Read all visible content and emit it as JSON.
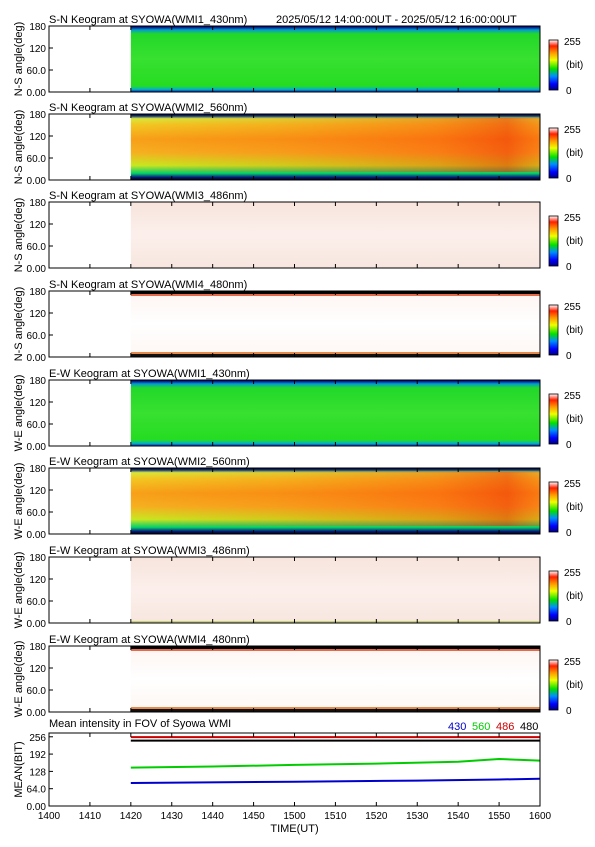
{
  "header": {
    "time_range": "2025/05/12 14:00:00UT - 2025/05/12 16:00:00UT"
  },
  "colors": {
    "channel_430": "#0000cc",
    "channel_560": "#00cc00",
    "channel_486": "#cc0000",
    "channel_480": "#000000"
  },
  "colorbar": {
    "max_label": "255",
    "unit_label": "(bit)",
    "min_label": "0"
  },
  "chart_data": [
    {
      "type": "heatmap",
      "title": "S-N Keogram at SYOWA(WMI1_430nm)",
      "ylabel": "N-S angle(deg)",
      "yticks": [
        "0.00",
        "60.0",
        "120",
        "180"
      ],
      "ylim": [
        0,
        180
      ],
      "data_start_ut": "1420",
      "appearance": "green"
    },
    {
      "type": "heatmap",
      "title": "S-N Keogram at SYOWA(WMI2_560nm)",
      "ylabel": "N-S angle(deg)",
      "yticks": [
        "0.00",
        "60.0",
        "120",
        "180"
      ],
      "ylim": [
        0,
        180
      ],
      "data_start_ut": "1420",
      "appearance": "orange-red"
    },
    {
      "type": "heatmap",
      "title": "S-N Keogram at SYOWA(WMI3_486nm)",
      "ylabel": "N-S angle(deg)",
      "yticks": [
        "0.00",
        "60.0",
        "120",
        "180"
      ],
      "ylim": [
        0,
        180
      ],
      "data_start_ut": "1420",
      "appearance": "pale-pink"
    },
    {
      "type": "heatmap",
      "title": "S-N Keogram at SYOWA(WMI4_480nm)",
      "ylabel": "N-S angle(deg)",
      "yticks": [
        "0.00",
        "60.0",
        "120",
        "180"
      ],
      "ylim": [
        0,
        180
      ],
      "data_start_ut": "1420",
      "appearance": "white"
    },
    {
      "type": "heatmap",
      "title": "E-W Keogram at SYOWA(WMI1_430nm)",
      "ylabel": "W-E angle(deg)",
      "yticks": [
        "0.00",
        "60.0",
        "120",
        "180"
      ],
      "ylim": [
        0,
        180
      ],
      "data_start_ut": "1420",
      "appearance": "green"
    },
    {
      "type": "heatmap",
      "title": "E-W Keogram at SYOWA(WMI2_560nm)",
      "ylabel": "W-E angle(deg)",
      "yticks": [
        "0.00",
        "60.0",
        "120",
        "180"
      ],
      "ylim": [
        0,
        180
      ],
      "data_start_ut": "1420",
      "appearance": "orange-red"
    },
    {
      "type": "heatmap",
      "title": "E-W Keogram at SYOWA(WMI3_486nm)",
      "ylabel": "W-E angle(deg)",
      "yticks": [
        "0.00",
        "60.0",
        "120",
        "180"
      ],
      "ylim": [
        0,
        180
      ],
      "data_start_ut": "1420",
      "appearance": "pale-pink"
    },
    {
      "type": "heatmap",
      "title": "E-W Keogram at SYOWA(WMI4_480nm)",
      "ylabel": "W-E angle(deg)",
      "yticks": [
        "0.00",
        "60.0",
        "120",
        "180"
      ],
      "ylim": [
        0,
        180
      ],
      "data_start_ut": "1420",
      "appearance": "white"
    },
    {
      "type": "line",
      "title": "Mean intensity in FOV of Syowa WMI",
      "xlabel": "TIME(UT)",
      "ylabel": "MEAN(BIT)",
      "ylim": [
        0,
        270
      ],
      "yticks": [
        "0.00",
        "64.0",
        "128",
        "192",
        "256"
      ],
      "xlim": [
        1400,
        1600
      ],
      "xticks": [
        "1400",
        "1410",
        "1420",
        "1430",
        "1440",
        "1450",
        "1500",
        "1510",
        "1520",
        "1530",
        "1540",
        "1550",
        "1600"
      ],
      "legend": [
        "430",
        "560",
        "486",
        "480"
      ],
      "series": [
        {
          "name": "486",
          "x": [
            "1420",
            "1600"
          ],
          "values": [
            255,
            255
          ]
        },
        {
          "name": "480",
          "x": [
            "1420",
            "1600"
          ],
          "values": [
            242,
            242
          ]
        },
        {
          "name": "560",
          "x": [
            "1420",
            "1440",
            "1500",
            "1520",
            "1540",
            "1550",
            "1600"
          ],
          "values": [
            142,
            146,
            152,
            157,
            164,
            174,
            168
          ]
        },
        {
          "name": "430",
          "x": [
            "1420",
            "1500",
            "1530",
            "1550",
            "1600"
          ],
          "values": [
            85,
            90,
            94,
            98,
            101
          ]
        }
      ]
    }
  ]
}
